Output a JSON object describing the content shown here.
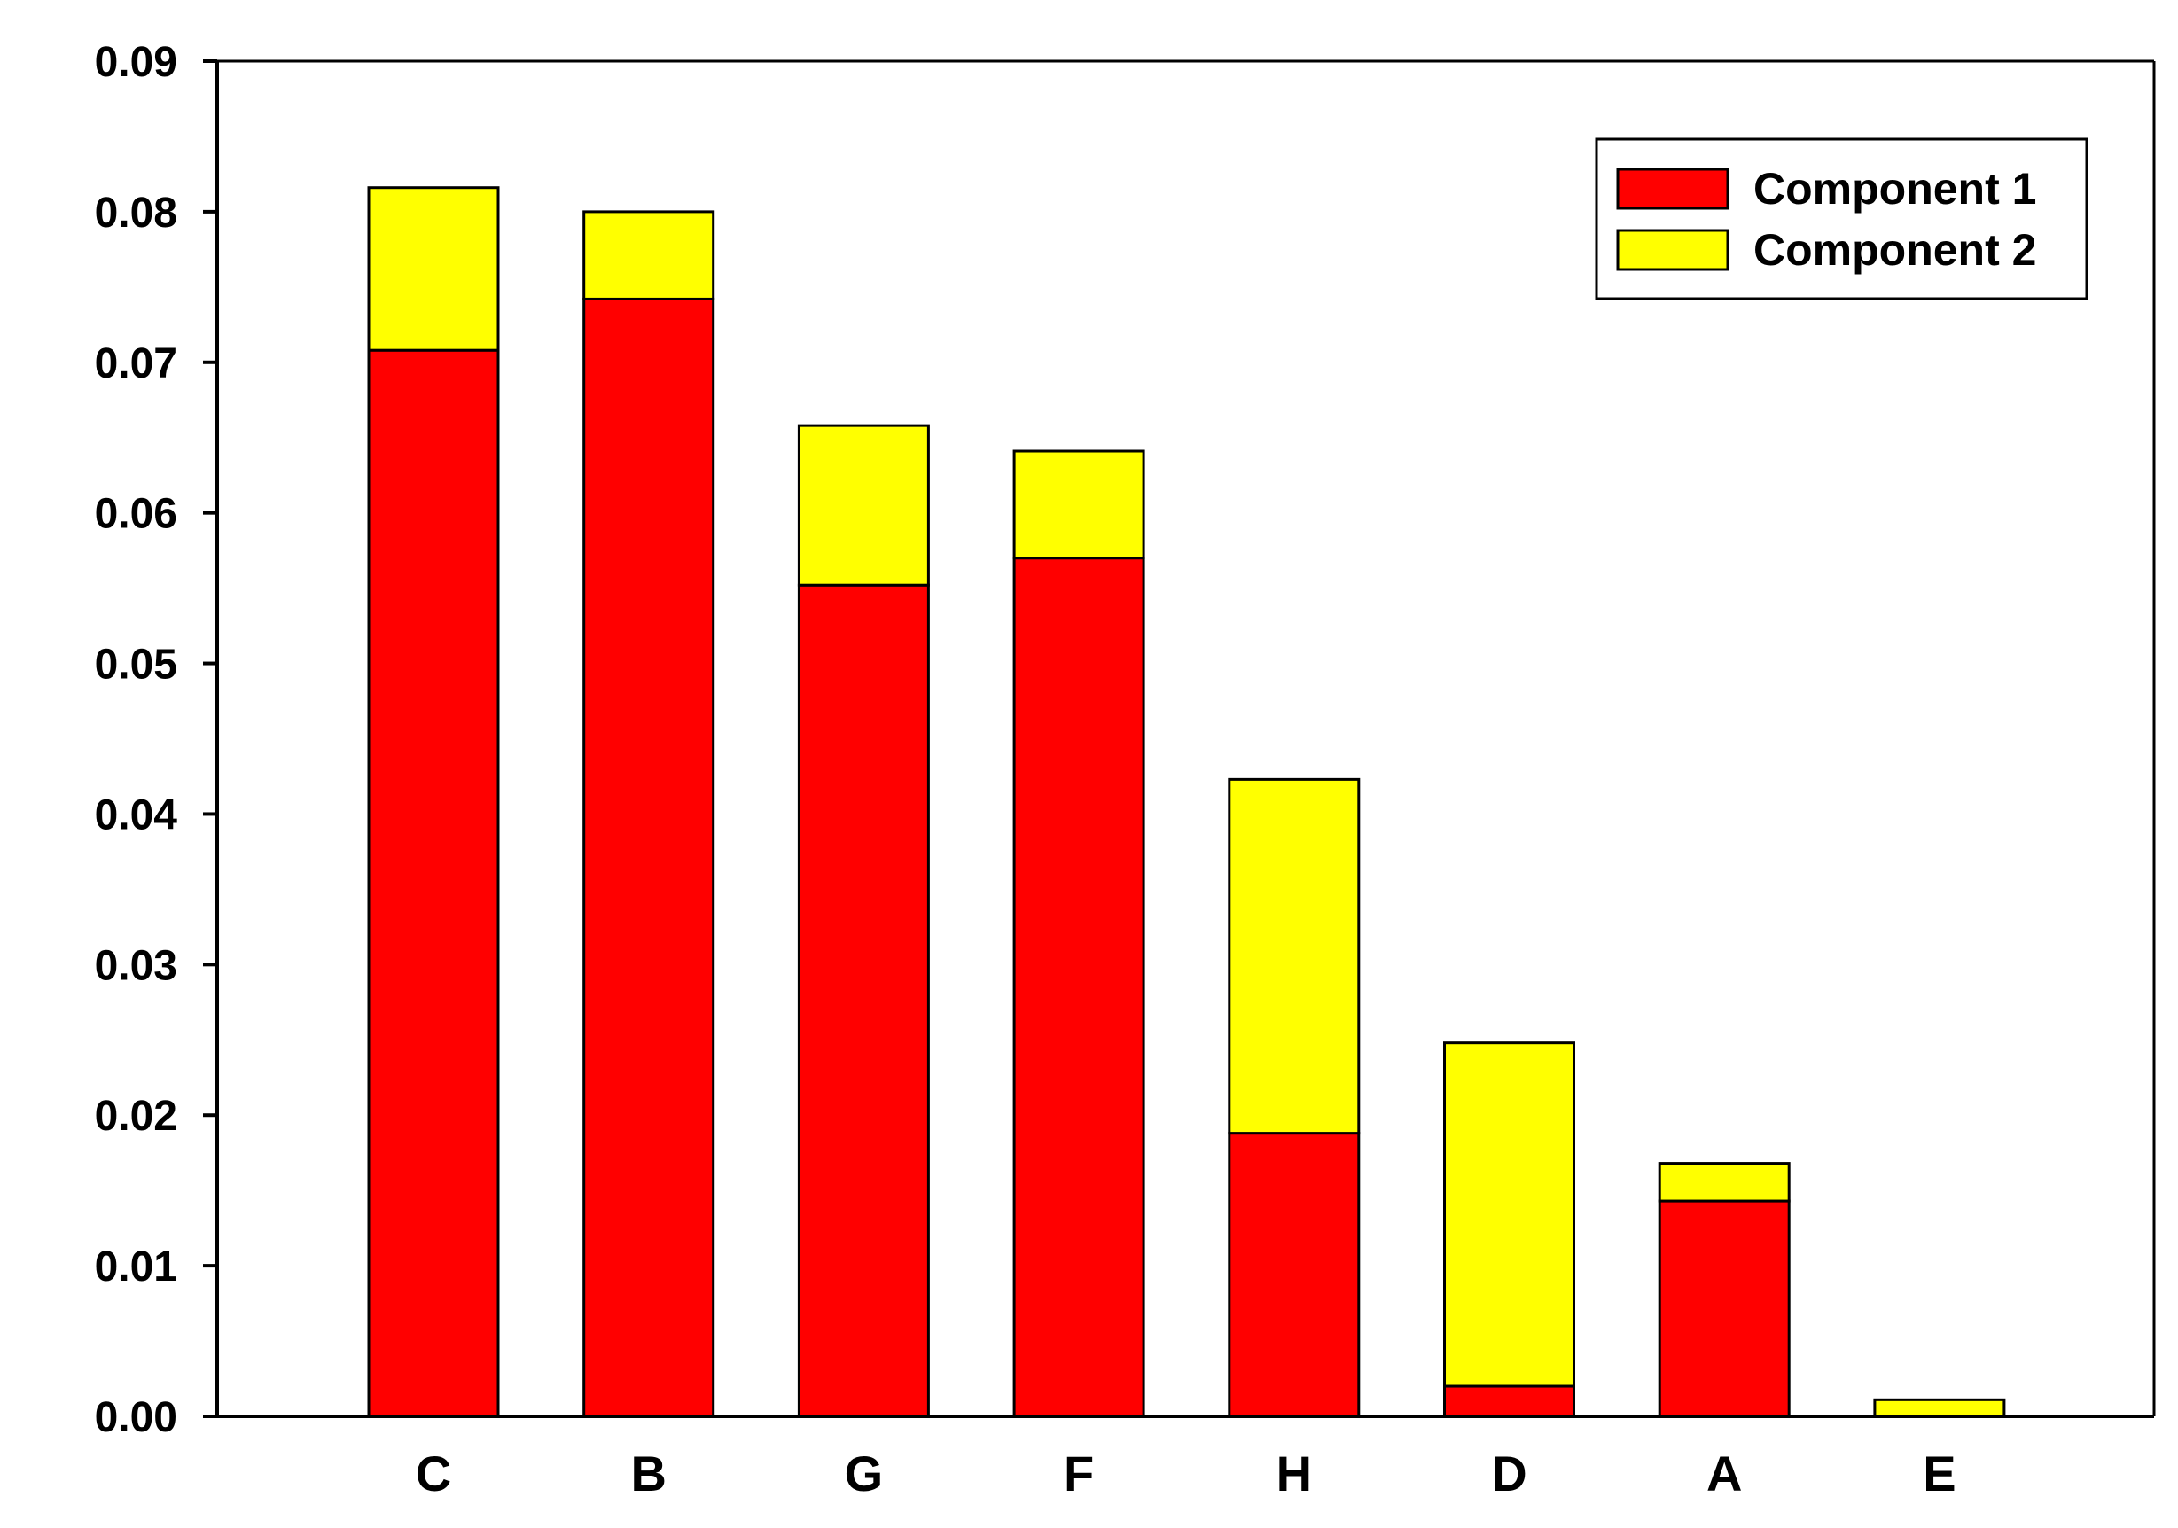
{
  "chart_data": {
    "type": "bar",
    "stacked": true,
    "title": "",
    "xlabel": "",
    "ylabel": "",
    "categories": [
      "C",
      "B",
      "G",
      "F",
      "H",
      "D",
      "A",
      "E"
    ],
    "series": [
      {
        "name": "Component 1",
        "color": "#ff0000",
        "values": [
          0.0708,
          0.0742,
          0.0552,
          0.057,
          0.0188,
          0.002,
          0.0143,
          0.0
        ]
      },
      {
        "name": "Component 2",
        "color": "#ffff00",
        "values": [
          0.0108,
          0.0058,
          0.0106,
          0.0071,
          0.0235,
          0.0228,
          0.0025,
          0.0011
        ]
      }
    ],
    "ylim": [
      0,
      0.09
    ],
    "yticks": [
      "0.00",
      "0.01",
      "0.02",
      "0.03",
      "0.04",
      "0.05",
      "0.06",
      "0.07",
      "0.08",
      "0.09"
    ],
    "grid": false,
    "legend_position": "top-right"
  }
}
